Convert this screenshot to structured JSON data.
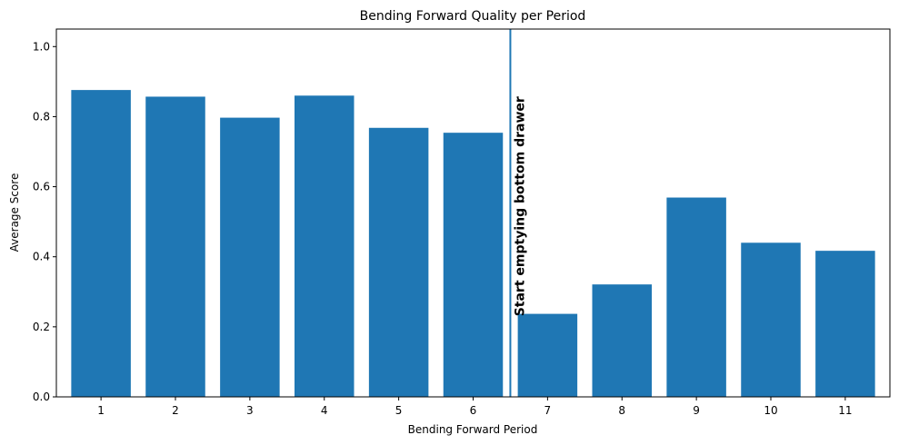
{
  "chart_data": {
    "type": "bar",
    "title": "Bending Forward Quality per Period",
    "xlabel": "Bending Forward Period",
    "ylabel": "Average Score",
    "categories": [
      "1",
      "2",
      "3",
      "4",
      "5",
      "6",
      "7",
      "8",
      "9",
      "10",
      "11"
    ],
    "values": [
      0.876,
      0.857,
      0.797,
      0.86,
      0.768,
      0.754,
      0.237,
      0.321,
      0.569,
      0.44,
      0.417
    ],
    "ylim": [
      0.0,
      1.05
    ],
    "yticks": [
      "0.0",
      "0.2",
      "0.4",
      "0.6",
      "0.8",
      "1.0"
    ],
    "grid": false,
    "bar_color": "#1f77b4",
    "annotation": {
      "text": "Start emptying bottom drawer",
      "x": 6.5,
      "line_color": "#1f77b4"
    }
  }
}
